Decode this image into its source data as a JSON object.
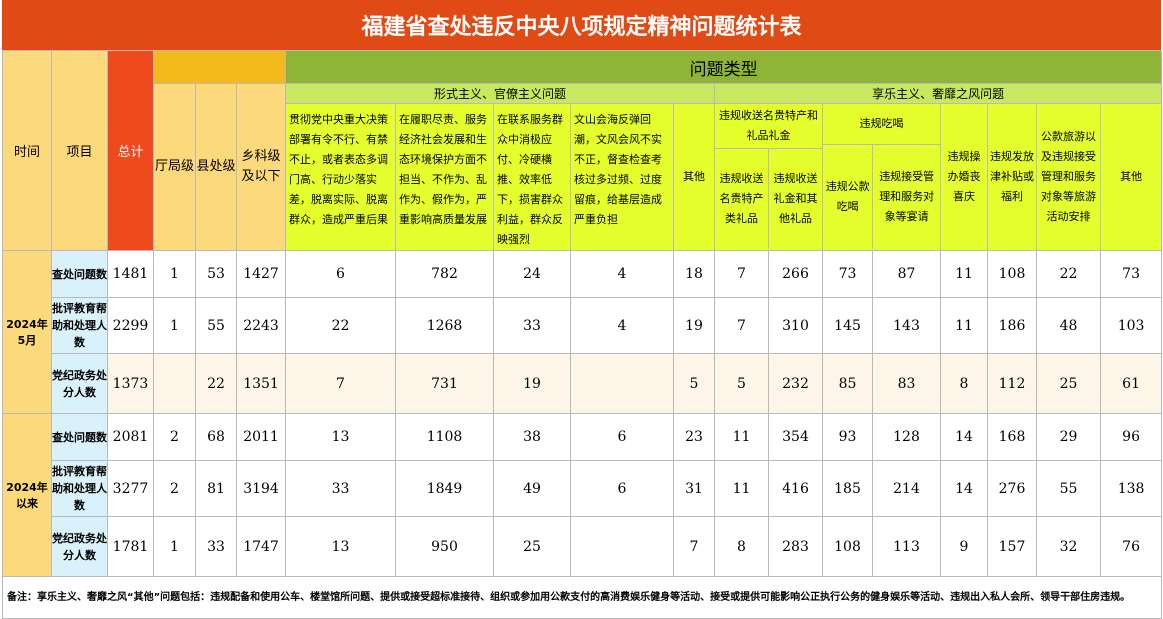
{
  "title": "福建省查处违反中央八项规定精神问题统计表",
  "header": {
    "time": "时间",
    "item": "项目",
    "total": "总计",
    "problem_type": "问题类型",
    "levels": [
      "厅局级",
      "县处级",
      "乡科级及以下"
    ],
    "group_formalism": "形式主义、官僚主义问题",
    "group_hedonism": "享乐主义、奢靡之风问题",
    "formalism_cols": [
      "贯彻党中央重大决策部署有令不行、有禁不止，或者表态多调门高、行动少落实差，脱离实际、脱离群众，造成严重后果",
      "在履职尽责、服务经济社会发展和生态环境保护方面不担当、不作为、乱作为、假作为，严重影响高质量发展",
      "在联系服务群众中消极应付、冷硬横推、效率低下，损害群众利益，群众反映强烈",
      "文山会海反弹回潮，文风会风不实不正，督查检查考核过多过频、过度留痕，给基层造成严重负担",
      "其他"
    ],
    "gift_group": "违规收送名贵特产和礼品礼金",
    "gift_cols": [
      "违规收送名贵特产类礼品",
      "违规收送礼金和其他礼品"
    ],
    "dining_group": "违规吃喝",
    "dining_cols": [
      "违规公款吃喝",
      "违规接受管理和服务对象等宴请"
    ],
    "hedonism_cols": [
      "违规操办婚丧喜庆",
      "违规发放津补贴或福利",
      "公款旅游以及违规接受管理和服务对象等旅游活动安排",
      "其他"
    ]
  },
  "periods": [
    {
      "label": "2024年5月",
      "rows": [
        {
          "item": "查处问题数",
          "values": [
            "1481",
            "1",
            "53",
            "1427",
            "6",
            "782",
            "24",
            "4",
            "18",
            "7",
            "266",
            "73",
            "87",
            "11",
            "108",
            "22",
            "73"
          ]
        },
        {
          "item": "批评教育帮助和处理人数",
          "values": [
            "2299",
            "1",
            "55",
            "2243",
            "22",
            "1268",
            "33",
            "4",
            "19",
            "7",
            "310",
            "145",
            "143",
            "11",
            "186",
            "48",
            "103"
          ]
        },
        {
          "item": "党纪政务处分人数",
          "values": [
            "1373",
            "",
            "22",
            "1351",
            "7",
            "731",
            "19",
            "",
            "5",
            "5",
            "232",
            "85",
            "83",
            "8",
            "112",
            "25",
            "61"
          ]
        }
      ]
    },
    {
      "label": "2024年以来",
      "rows": [
        {
          "item": "查处问题数",
          "values": [
            "2081",
            "2",
            "68",
            "2011",
            "13",
            "1108",
            "38",
            "6",
            "23",
            "11",
            "354",
            "93",
            "128",
            "14",
            "168",
            "29",
            "96"
          ]
        },
        {
          "item": "批评教育帮助和处理人数",
          "values": [
            "3277",
            "2",
            "81",
            "3194",
            "33",
            "1849",
            "49",
            "6",
            "31",
            "11",
            "416",
            "185",
            "214",
            "14",
            "276",
            "55",
            "138"
          ]
        },
        {
          "item": "党纪政务处分人数",
          "values": [
            "1781",
            "1",
            "33",
            "1747",
            "13",
            "950",
            "25",
            "",
            "7",
            "8",
            "283",
            "108",
            "113",
            "9",
            "157",
            "32",
            "76"
          ]
        }
      ]
    }
  ],
  "note": "备注：享乐主义、奢靡之风“其他”问题包括：违规配备和使用公车、楼堂馆所问题、提供或接受超标准接待、组织或参加用公款支付的高消费娱乐健身等活动、接受或提供可能影响公正执行公务的健身娱乐等活动、违规出入私人会所、领导干部住房违规。"
}
